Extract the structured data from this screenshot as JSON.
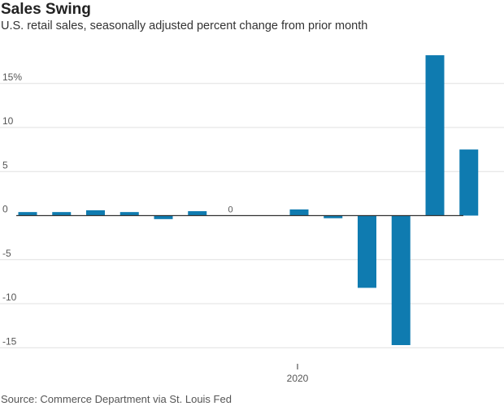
{
  "title": "Sales Swing",
  "subtitle": "U.S. retail sales, seasonally adjusted percent change from prior month",
  "source": "Source: Commerce Department via St. Louis Fed",
  "colors": {
    "bar": "#0f7bb0",
    "grid": "#e0e0e0",
    "zero": "#333333",
    "text": "#555555"
  },
  "chart_data": {
    "type": "bar",
    "title": "Sales Swing",
    "subtitle": "U.S. retail sales, seasonally adjusted percent change from prior month",
    "values": [
      0.4,
      0.4,
      0.6,
      0.4,
      -0.4,
      0.5,
      0,
      null,
      0.7,
      -0.3,
      -8.2,
      -14.7,
      18.2,
      7.5
    ],
    "bar_labels": [
      null,
      null,
      null,
      null,
      null,
      null,
      "0",
      null,
      null,
      null,
      null,
      null,
      null,
      null
    ],
    "ylim": [
      -15.5,
      18.5
    ],
    "yticks": [
      15,
      10,
      5,
      0,
      -5,
      -10,
      -15
    ],
    "ytick_labels": [
      "15%",
      "10",
      "5",
      "0",
      "-5",
      "-10",
      "-15"
    ],
    "xtick_labels": [
      {
        "index": 8,
        "label": "2020"
      }
    ],
    "grid": true
  }
}
